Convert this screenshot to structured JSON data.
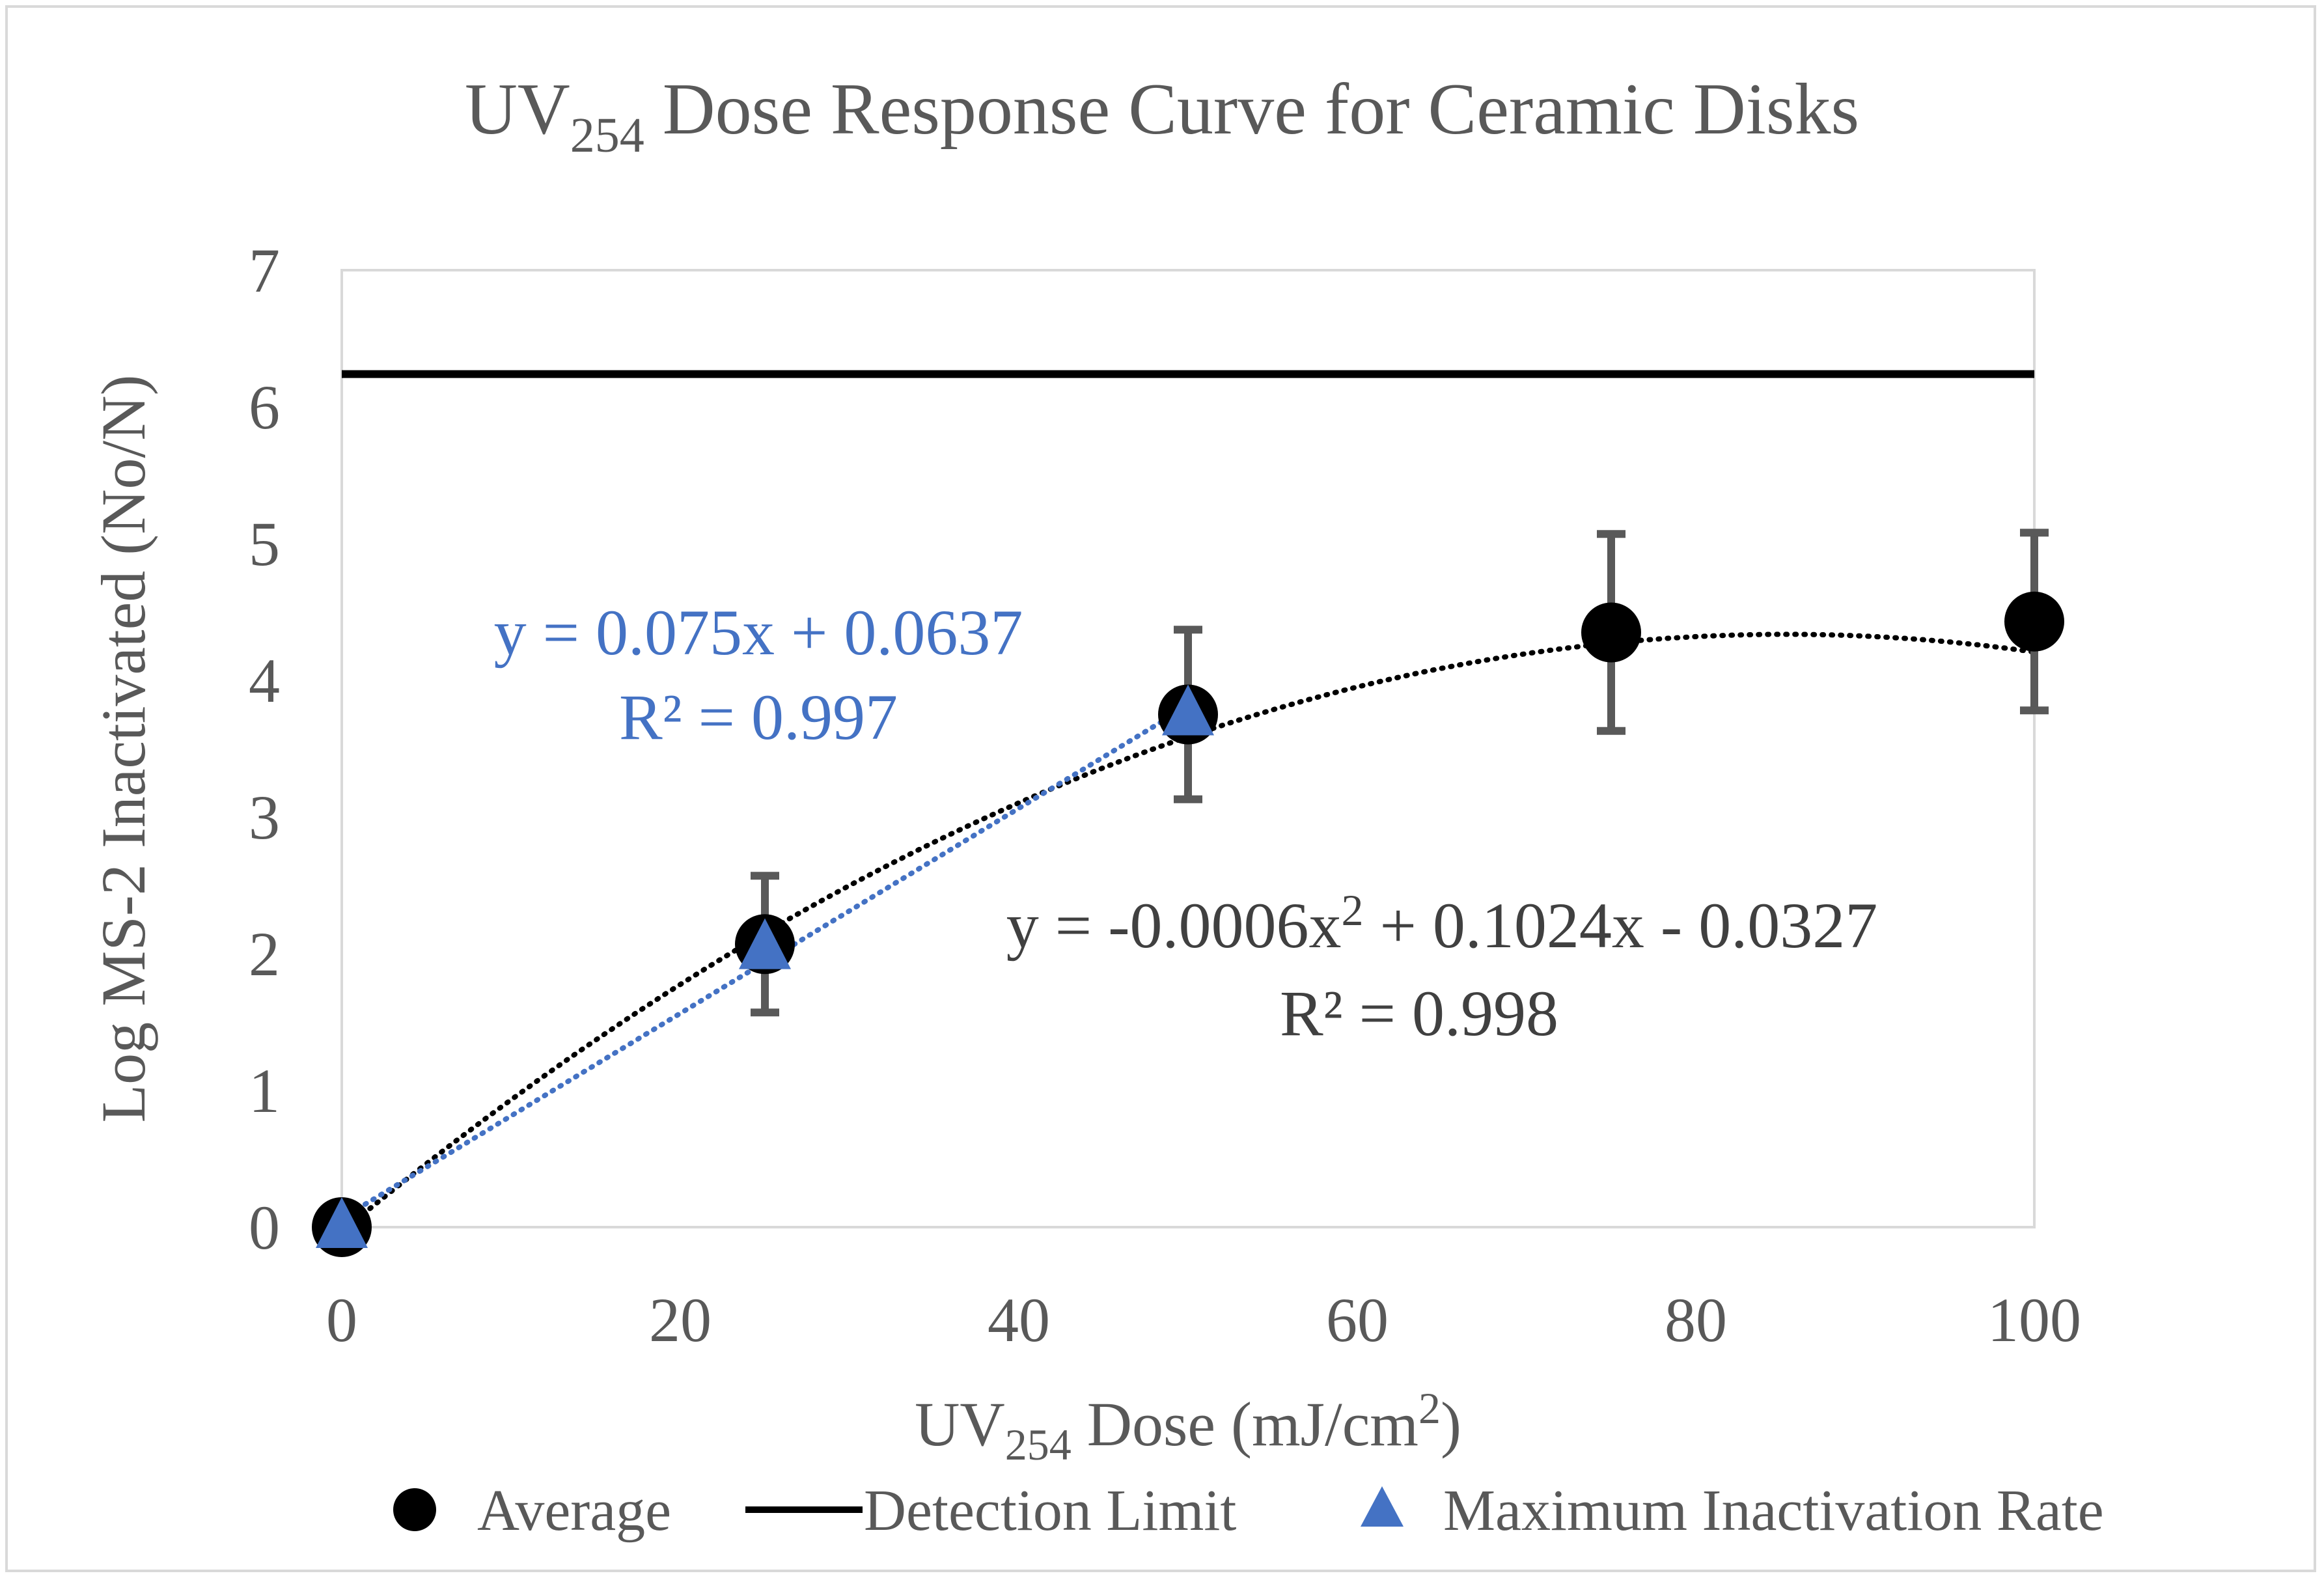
{
  "chart_data": {
    "type": "scatter",
    "title": {
      "main": "UV",
      "sub": "254",
      "rest": " Dose Response Curve for Ceramic Disks"
    },
    "xlabel": {
      "main": "UV",
      "sub": "254",
      "rest": " Dose (mJ/cm",
      "sup": "2",
      "end": ")"
    },
    "ylabel": "Log MS-2 Inactivated (No/N)",
    "xlim": [
      0,
      100
    ],
    "ylim": [
      0,
      7
    ],
    "x_ticks": [
      "0",
      "20",
      "40",
      "60",
      "80",
      "100"
    ],
    "y_ticks": [
      "0",
      "1",
      "2",
      "3",
      "4",
      "5",
      "6",
      "7"
    ],
    "series": [
      {
        "name": "Average",
        "marker": "circle",
        "color": "#000000",
        "x": [
          0,
          25,
          50,
          75,
          100
        ],
        "y": [
          0,
          2.07,
          3.75,
          4.35,
          4.43
        ],
        "error": [
          0,
          0.5,
          0.62,
          0.72,
          0.65
        ]
      },
      {
        "name": "Detection Limit",
        "marker": "line",
        "color": "#000000",
        "x": [
          0,
          100
        ],
        "y": [
          6.24,
          6.24
        ]
      },
      {
        "name": "Maximum Inactivation Rate",
        "marker": "triangle",
        "color": "#4472c4",
        "x": [
          0,
          25,
          50
        ],
        "y": [
          0,
          2.04,
          3.75
        ]
      }
    ],
    "trendlines": [
      {
        "series": "Average",
        "type": "poly2",
        "a": -0.0006,
        "b": 0.1024,
        "c": -0.0327,
        "xrange": [
          0,
          100
        ],
        "color": "#000000"
      },
      {
        "series": "Maximum Inactivation Rate",
        "type": "linear",
        "m": 0.075,
        "c": 0.0637,
        "xrange": [
          0,
          50
        ],
        "color": "#4472c4"
      }
    ],
    "annotations": {
      "blue_eq": "y = 0.075x + 0.0637",
      "blue_r2": "R² = 0.997",
      "black_eq_pre": "y = -0.0006x",
      "black_eq_sup": "2",
      "black_eq_post": " + 0.1024x - 0.0327",
      "black_r2": "R² = 0.998"
    },
    "legend": {
      "position": "bottom",
      "items": [
        "Average",
        "Detection Limit",
        "Maximum Inactivation Rate"
      ]
    }
  }
}
